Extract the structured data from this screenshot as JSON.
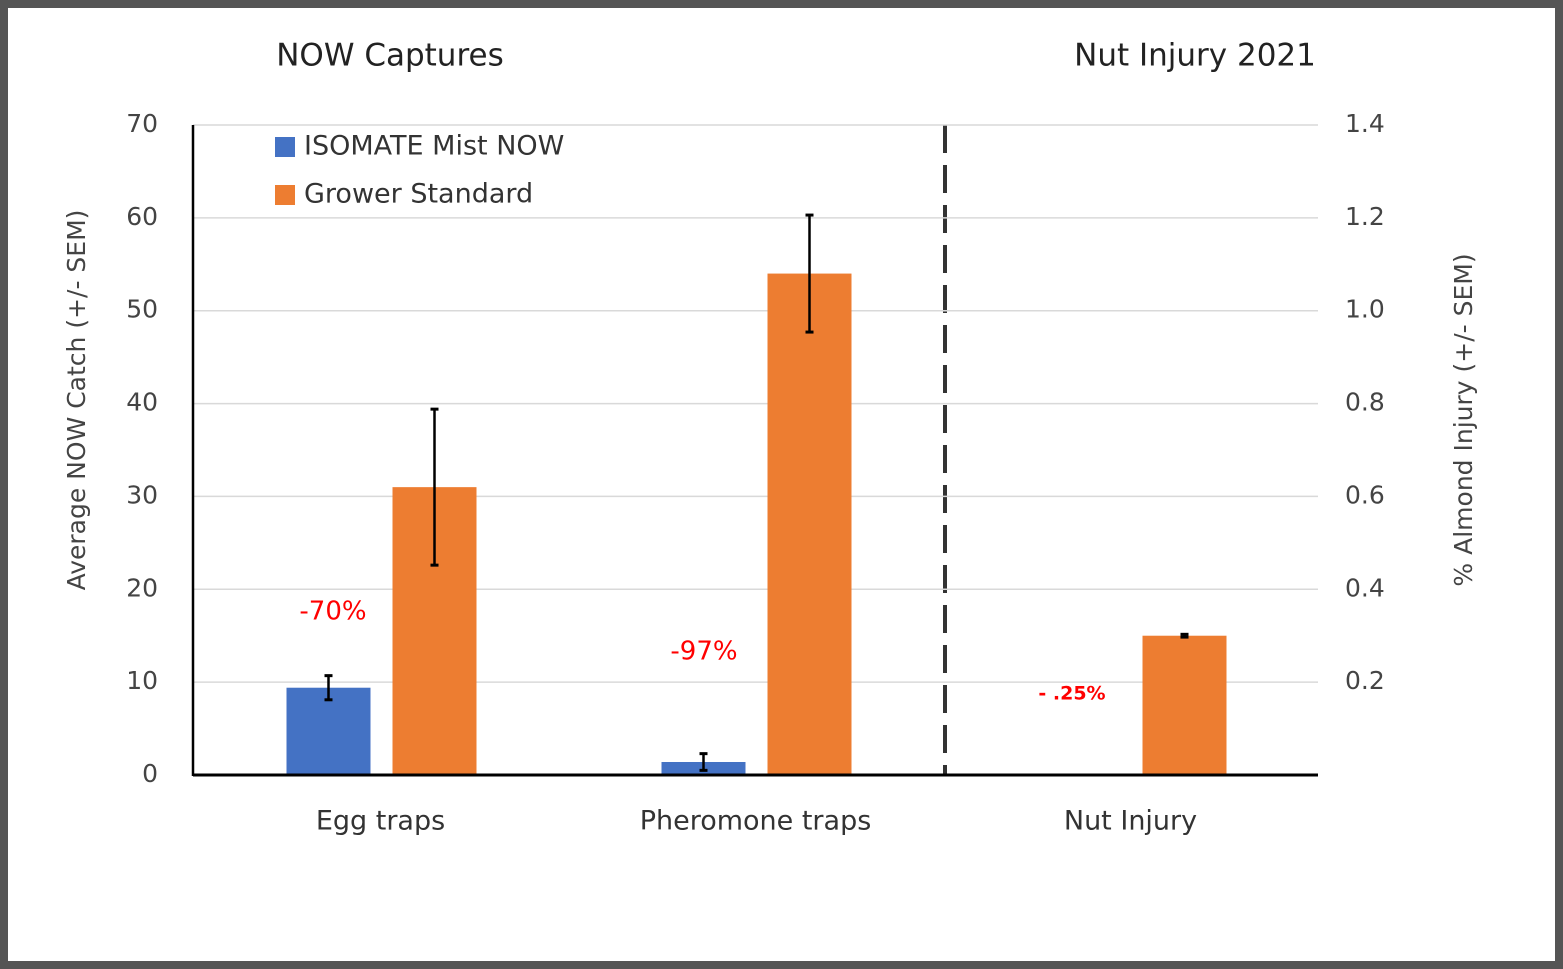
{
  "chart_data": {
    "type": "bar",
    "titles": [
      "NOW Captures",
      "Nut Injury 2021"
    ],
    "y_label": "Average NOW Catch (+/- SEM)",
    "y2_label": "% Almond Injury (+/- SEM)",
    "categories": [
      "Egg traps",
      "Pheromone traps",
      "Nut Injury"
    ],
    "category_axes": [
      "y",
      "y",
      "y2"
    ],
    "series": [
      {
        "name": "ISOMATE Mist NOW",
        "color": "#4472c4",
        "values": [
          9.4,
          1.4,
          0
        ],
        "errors": [
          1.3,
          0.9,
          null
        ]
      },
      {
        "name": "Grower Standard",
        "color": "#ed7d31",
        "values": [
          31,
          54,
          0.3
        ],
        "errors": [
          8.4,
          6.3,
          0.003
        ]
      }
    ],
    "annotations": [
      "-70%",
      "-97%",
      "- .25%"
    ],
    "ylim": [
      0,
      70
    ],
    "yticks": [
      0,
      10,
      20,
      30,
      40,
      50,
      60,
      70
    ],
    "y2lim": [
      0,
      1.4
    ],
    "y2ticks": [
      0.2,
      0.4,
      0.6,
      0.8,
      {
        "value": 1,
        "label": "1.0"
      },
      1.2,
      1.4
    ],
    "grid": true,
    "legend": "top-left"
  }
}
